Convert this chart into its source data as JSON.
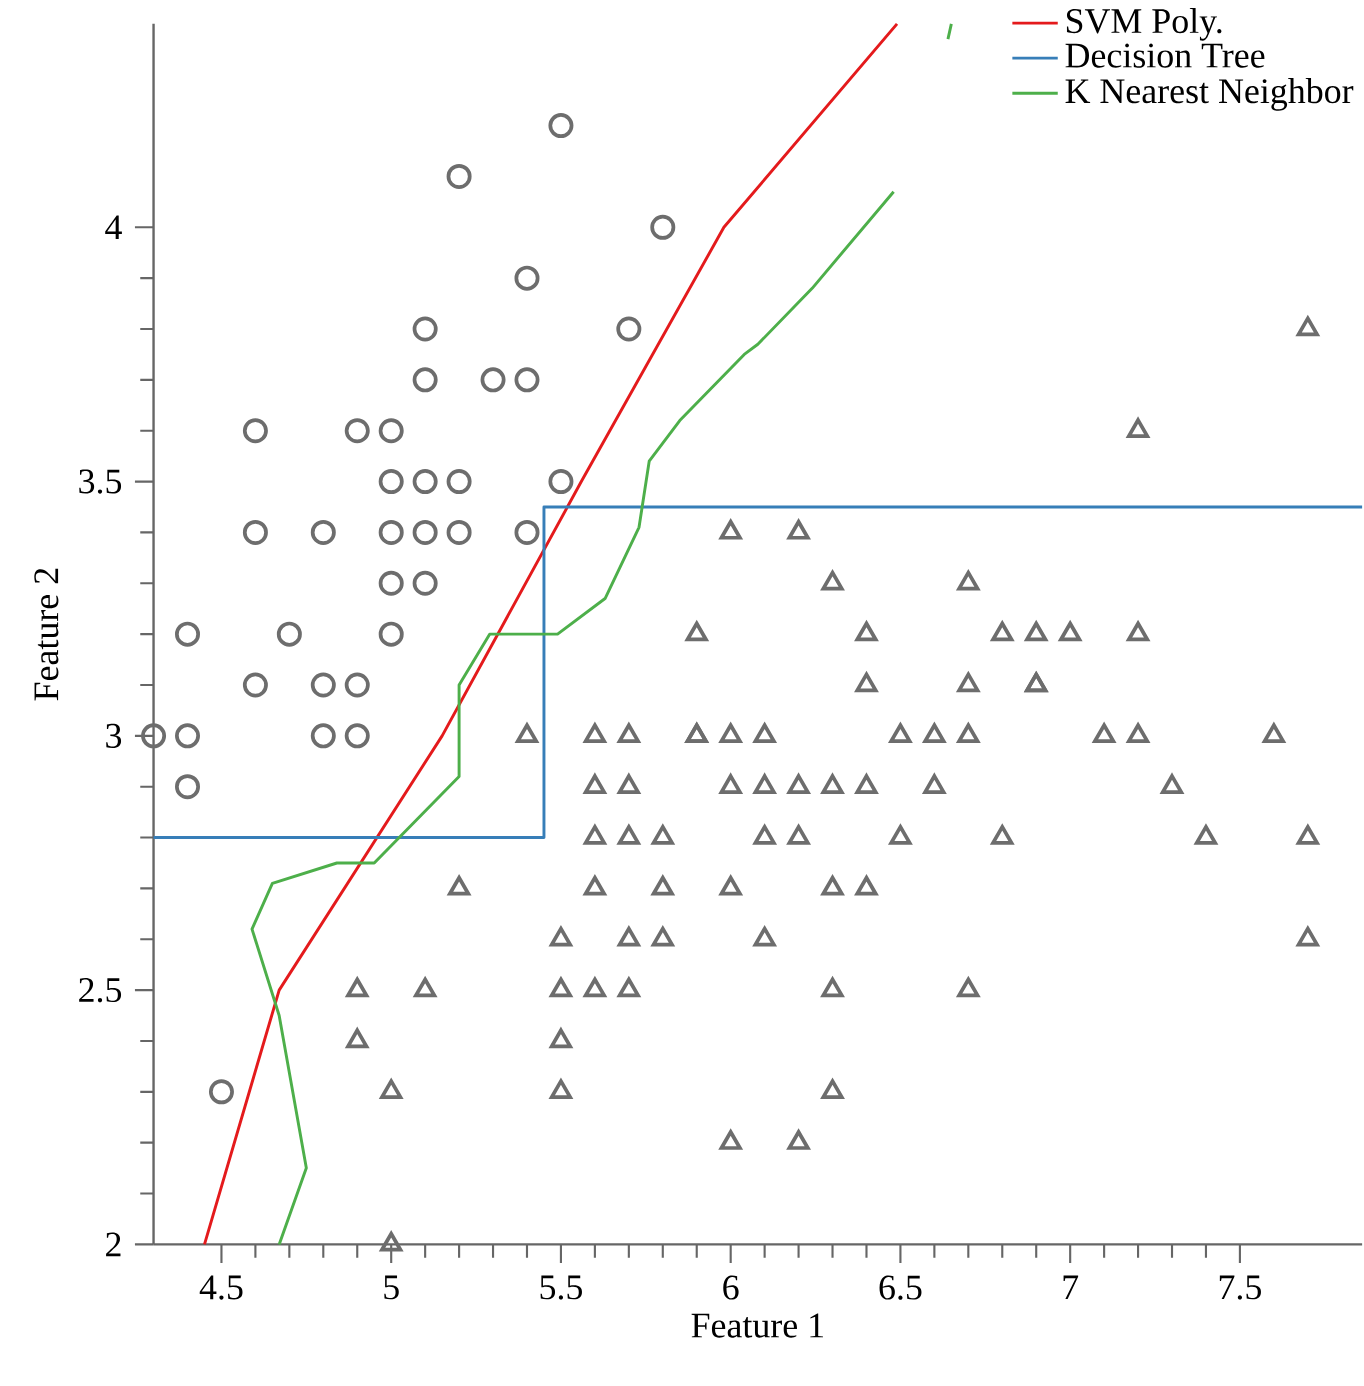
{
  "chart_data": {
    "type": "scatter",
    "xlabel": "Feature 1",
    "ylabel": "Feature 2",
    "xlim": [
      4.3,
      7.86
    ],
    "ylim": [
      2,
      4.4
    ],
    "xticks": [
      4.5,
      5,
      5.5,
      6,
      6.5,
      7,
      7.5
    ],
    "yticks": [
      2,
      2.5,
      3,
      3.5,
      4
    ],
    "grid": false,
    "legend": "top right",
    "series": [
      {
        "type": "scatter",
        "marker": "circle",
        "color": "#6d6d6d",
        "x": [
          5.1,
          4.9,
          4.7,
          4.6,
          5.0,
          5.4,
          4.6,
          5.0,
          4.4,
          4.9,
          5.4,
          4.8,
          4.8,
          4.3,
          5.8,
          5.7,
          5.1,
          5.4,
          5.1,
          4.6,
          5.1,
          5.2,
          5.2,
          4.8,
          5.2,
          5.5,
          5.0,
          5.5,
          4.9,
          4.4,
          5.1,
          5.0,
          4.5,
          4.4,
          5.3,
          5.0
        ],
        "values": [
          3.5,
          3.0,
          3.2,
          3.1,
          3.6,
          3.9,
          3.4,
          3.4,
          2.9,
          3.1,
          3.7,
          3.4,
          3.0,
          3.0,
          4.0,
          3.8,
          3.8,
          3.4,
          3.7,
          3.6,
          3.3,
          3.5,
          3.4,
          3.1,
          4.1,
          4.2,
          3.2,
          3.5,
          3.6,
          3.0,
          3.4,
          3.5,
          2.3,
          3.2,
          3.7,
          3.3
        ]
      },
      {
        "type": "scatter",
        "marker": "triangle",
        "color": "#6d6d6d",
        "x": [
          7.0,
          6.4,
          6.9,
          5.5,
          6.5,
          5.7,
          6.3,
          4.9,
          6.6,
          5.2,
          5.0,
          5.9,
          6.0,
          6.1,
          5.6,
          6.7,
          5.6,
          5.8,
          6.2,
          5.6,
          5.9,
          6.1,
          6.3,
          6.4,
          6.6,
          6.8,
          6.7,
          6.0,
          5.7,
          5.5,
          6.0,
          5.4,
          6.0,
          6.3,
          5.5,
          5.5,
          6.1,
          5.8,
          5.0,
          5.6,
          5.7,
          5.7,
          6.2,
          5.1,
          7.1,
          6.3,
          7.6,
          4.9,
          7.3,
          6.7,
          7.2,
          6.4,
          5.7,
          5.8,
          7.7,
          7.7,
          6.9,
          7.7,
          6.7,
          7.2,
          6.2,
          7.4,
          6.3,
          6.0,
          6.9,
          6.8,
          6.2,
          5.9,
          5.6,
          6.4,
          7.2,
          6.1,
          6.5
        ],
        "values": [
          3.2,
          3.2,
          3.1,
          2.3,
          2.8,
          2.8,
          3.3,
          2.4,
          2.9,
          2.7,
          2.0,
          3.0,
          2.2,
          2.9,
          2.9,
          3.1,
          3.0,
          2.7,
          2.2,
          2.5,
          3.2,
          2.8,
          2.5,
          2.9,
          3.0,
          2.8,
          3.0,
          2.9,
          2.6,
          2.4,
          2.7,
          3.0,
          3.4,
          2.3,
          2.5,
          2.6,
          3.0,
          2.6,
          2.3,
          2.7,
          3.0,
          2.9,
          2.9,
          2.5,
          3.0,
          2.9,
          3.0,
          2.5,
          2.9,
          2.5,
          3.6,
          2.7,
          2.5,
          2.8,
          3.8,
          2.6,
          3.2,
          2.8,
          3.3,
          3.2,
          2.8,
          2.8,
          2.7,
          3.0,
          3.1,
          3.2,
          3.4,
          3.0,
          2.8,
          3.1,
          3.0,
          2.6,
          3.0
        ]
      },
      {
        "type": "line",
        "name": "SVM Poly.",
        "color": "#e41a1c",
        "x": [
          4.45,
          4.67,
          5.15,
          5.56,
          5.98,
          6.49
        ],
        "values": [
          2.0,
          2.5,
          3.0,
          3.5,
          4.0,
          4.4
        ]
      },
      {
        "type": "line",
        "name": "Decision Tree",
        "color": "#377eb8",
        "x": [
          4.3,
          5.45,
          5.45,
          7.86
        ],
        "values": [
          2.8,
          2.8,
          3.45,
          3.45
        ]
      },
      {
        "type": "line",
        "name": "K Nearest Neighbor",
        "color": "#4daf4a",
        "x": [
          4.67,
          4.75,
          4.67,
          4.59,
          4.65,
          4.84,
          4.95,
          5.2,
          5.2,
          5.29,
          5.49,
          5.63,
          5.73,
          5.76,
          5.85,
          6.04,
          6.08,
          6.24,
          6.48,
          6.56,
          6.64,
          6.65
        ],
        "values": [
          2.0,
          2.15,
          2.45,
          2.62,
          2.71,
          2.75,
          2.75,
          2.92,
          3.1,
          3.2,
          3.2,
          3.27,
          3.41,
          3.54,
          3.62,
          3.75,
          3.77,
          3.88,
          4.07,
          null,
          4.37,
          4.4
        ]
      }
    ]
  }
}
